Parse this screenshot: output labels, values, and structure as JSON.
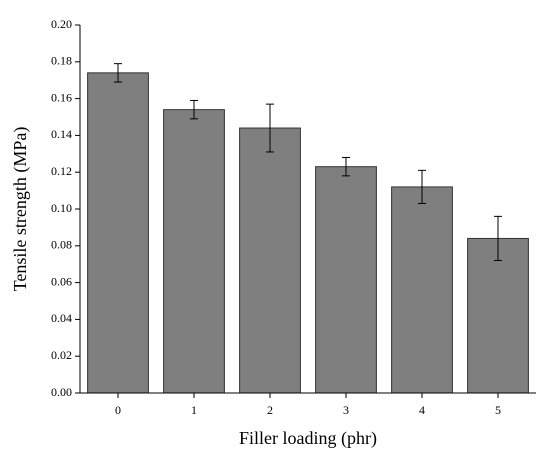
{
  "chart_data": {
    "type": "bar",
    "xlabel": "Filler loading (phr)",
    "ylabel": "Tensile strength (MPa)",
    "categories": [
      "0",
      "1",
      "2",
      "3",
      "4",
      "5"
    ],
    "values": [
      0.174,
      0.154,
      0.144,
      0.123,
      0.112,
      0.084
    ],
    "errors": [
      0.005,
      0.005,
      0.013,
      0.005,
      0.009,
      0.012
    ],
    "color": "#7f7f7f",
    "ylim": [
      0,
      0.2
    ],
    "yticks": [
      {
        "value": 0,
        "label": "0.00"
      },
      {
        "value": 0.02,
        "label": "0.02"
      },
      {
        "value": 0.04,
        "label": "0.04"
      },
      {
        "value": 0.06,
        "label": "0.06"
      },
      {
        "value": 0.08,
        "label": "0.08"
      },
      {
        "value": 0.1,
        "label": "0.10"
      },
      {
        "value": 0.12,
        "label": "0.12"
      },
      {
        "value": 0.14,
        "label": "0.14"
      },
      {
        "value": 0.16,
        "label": "0.16"
      },
      {
        "value": 0.18,
        "label": "0.18"
      },
      {
        "value": 0.2,
        "label": "0.20"
      }
    ]
  }
}
